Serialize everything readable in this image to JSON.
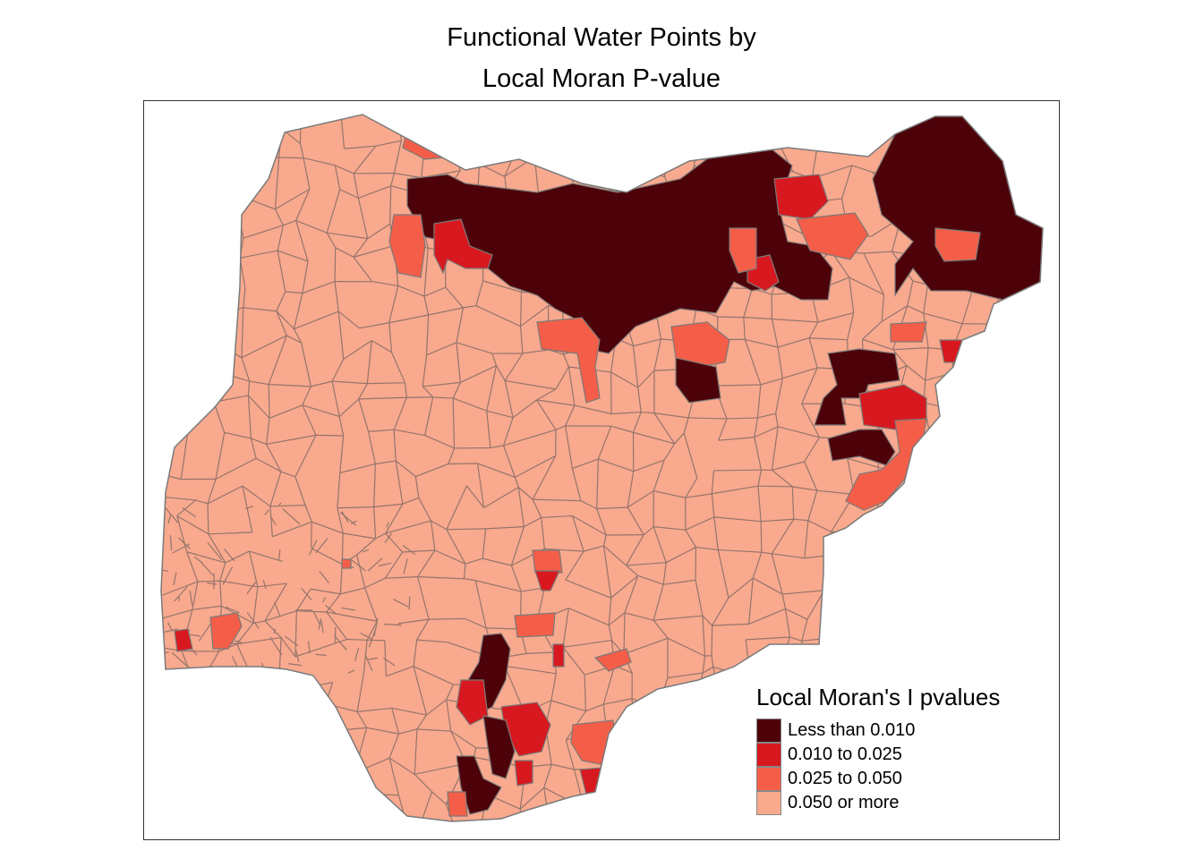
{
  "title": {
    "line1": "Functional Water Points by",
    "line2": "Local Moran P-value"
  },
  "legend": {
    "title": "Local Moran's I pvalues",
    "classes": [
      {
        "label": "Less than 0.010",
        "color": "#4d0209"
      },
      {
        "label": "0.010 to 0.025",
        "color": "#d7191f"
      },
      {
        "label": "0.025 to 0.050",
        "color": "#f45e48"
      },
      {
        "label": "0.050 or more",
        "color": "#f9a98e"
      }
    ]
  },
  "colors": {
    "boundary": "#7a7a7a",
    "frame": "#333333",
    "background": "#ffffff"
  }
}
